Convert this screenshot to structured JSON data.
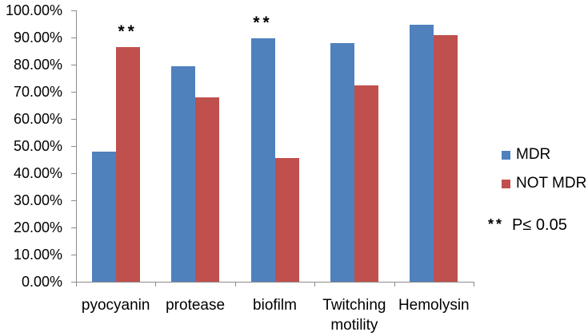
{
  "chart_data": {
    "type": "bar",
    "title": "",
    "xlabel": "",
    "ylabel": "",
    "categories": [
      "pyocyanin",
      "protease",
      "biofilm",
      "Twitching motility",
      "Hemolysin"
    ],
    "series": [
      {
        "name": "MDR",
        "color": "#4F81BD",
        "values": [
          48.0,
          79.3,
          89.7,
          87.9,
          94.8
        ]
      },
      {
        "name": "NOT MDR",
        "color": "#C0504D",
        "values": [
          86.4,
          68.0,
          45.5,
          72.5,
          91.0
        ]
      }
    ],
    "ylim": [
      0,
      100
    ],
    "yticks": [
      {
        "v": 0,
        "label": "0.00%"
      },
      {
        "v": 10,
        "label": "10.00%"
      },
      {
        "v": 20,
        "label": "20.00%"
      },
      {
        "v": 30,
        "label": "30.00%"
      },
      {
        "v": 40,
        "label": "40.00%"
      },
      {
        "v": 50,
        "label": "50.00%"
      },
      {
        "v": 60,
        "label": "60.00%"
      },
      {
        "v": 70,
        "label": "70.00%"
      },
      {
        "v": 80,
        "label": "80.00%"
      },
      {
        "v": 90,
        "label": "90.00%"
      },
      {
        "v": 100,
        "label": "100.00%"
      }
    ],
    "grid": false,
    "legend_position": "right",
    "annotations": [
      {
        "text": "**",
        "category_index": 0,
        "series_index": 1
      },
      {
        "text": "**",
        "category_index": 2,
        "series_index": 0
      }
    ]
  },
  "note": {
    "stars": "**",
    "text": "P≤ 0.05"
  },
  "colors": {
    "axis": "#8c8c8c",
    "mdr_blue": "#4F81BD",
    "not_mdr_red": "#C0504D",
    "background": "#ffffff"
  }
}
